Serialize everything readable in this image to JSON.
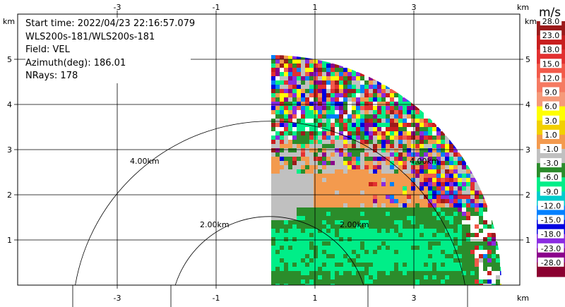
{
  "info": {
    "start_time": "Start time: 2022/04/23 22:16:57.079",
    "site": "WLS200s-181/WLS200s-181",
    "field": "Field: VEL",
    "azimuth": "Azimuth(deg): 186.01",
    "nrays": "NRays: 178"
  },
  "axes": {
    "unit_x": "km",
    "unit_y": "km",
    "x_ticks": [
      "-3",
      "-1",
      "1",
      "3"
    ],
    "y_ticks": [
      "1",
      "2",
      "3",
      "4",
      "5"
    ]
  },
  "range_rings": [
    "2.00km",
    "4.00km",
    "2.00km",
    "4.00km"
  ],
  "colorbar": {
    "unit": "m/s",
    "labels": [
      "28.0",
      "23.0",
      "18.0",
      "15.0",
      "12.0",
      "9.0",
      "6.0",
      "3.0",
      "1.0",
      "-1.0",
      "-3.0",
      "-6.0",
      "-9.0",
      "-12.0",
      "-15.0",
      "-18.0",
      "-23.0",
      "-28.0"
    ],
    "colors": [
      "#9b1b1b",
      "#c81e1e",
      "#e23030",
      "#f25a4a",
      "#f57a62",
      "#f59a7a",
      "#ffff00",
      "#f2d000",
      "#f39a4e",
      "#c0c0c0",
      "#2b8c2b",
      "#00ee88",
      "#00cccc",
      "#0080ff",
      "#0000e0",
      "#8a2be2",
      "#8b008b",
      "#8b0030"
    ]
  }
}
